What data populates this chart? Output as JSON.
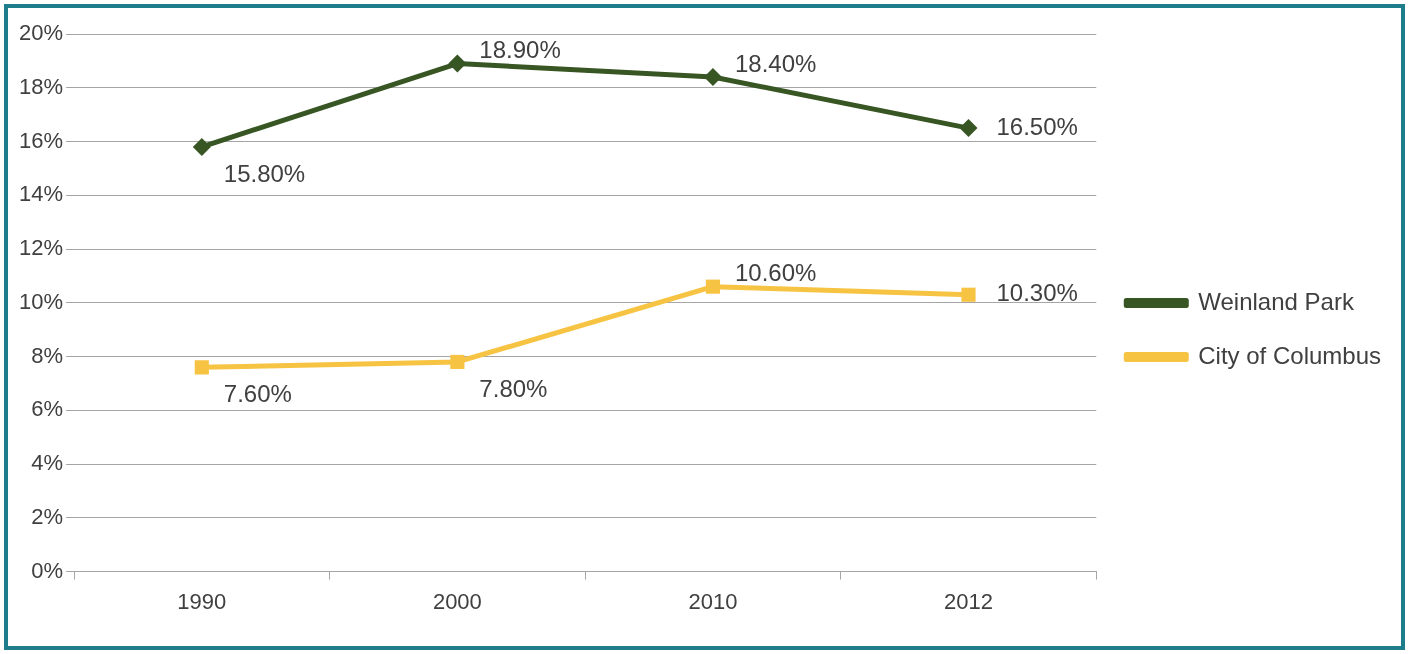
{
  "chart_data": {
    "type": "line",
    "categories": [
      "1990",
      "2000",
      "2010",
      "2012"
    ],
    "series": [
      {
        "name": "Weinland Park",
        "color": "#375623",
        "marker": "diamond",
        "values": [
          15.8,
          18.9,
          18.4,
          16.5
        ],
        "value_labels": [
          "15.80%",
          "18.90%",
          "18.40%",
          "16.50%"
        ]
      },
      {
        "name": "City of Columbus",
        "color": "#f6c343",
        "marker": "square",
        "values": [
          7.6,
          7.8,
          10.6,
          10.3
        ],
        "value_labels": [
          "7.60%",
          "7.80%",
          "10.60%",
          "10.30%"
        ]
      }
    ],
    "ylim": [
      0,
      20
    ],
    "yticks": [
      {
        "value": 0,
        "label": "0%"
      },
      {
        "value": 2,
        "label": "2%"
      },
      {
        "value": 4,
        "label": "4%"
      },
      {
        "value": 6,
        "label": "6%"
      },
      {
        "value": 8,
        "label": "8%"
      },
      {
        "value": 10,
        "label": "10%"
      },
      {
        "value": 12,
        "label": "12%"
      },
      {
        "value": 14,
        "label": "14%"
      },
      {
        "value": 16,
        "label": "16%"
      },
      {
        "value": 18,
        "label": "18%"
      },
      {
        "value": 20,
        "label": "20%"
      }
    ],
    "grid": "y",
    "legend": "right",
    "line_style": "solid"
  }
}
